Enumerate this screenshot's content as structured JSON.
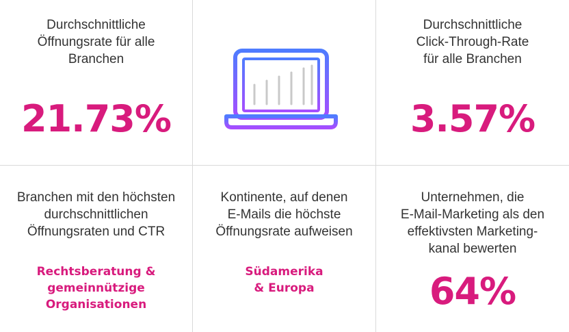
{
  "accent_color": "#d81b7d",
  "icon_gradient": [
    "#4f7cff",
    "#a64dff"
  ],
  "stats": {
    "open_rate": {
      "label": "Durchschnittliche\nÖffnungsrate für alle\nBranchen",
      "value": "21.73%"
    },
    "center_icon": "laptop-chart-icon",
    "ctr": {
      "label": "Durchschnittliche\nClick-Through-Rate\nfür alle Branchen",
      "value": "3.57%"
    },
    "industries": {
      "label": "Branchen mit den höchsten\ndurchschnittlichen\nÖffnungsraten und CTR",
      "value": "Rechtsberatung &\ngemeinnützige\nOrganisationen"
    },
    "continents": {
      "label": "Kontinente, auf denen\nE-Mails die höchste\nÖffnungsrate aufweisen",
      "value": "Südamerika\n& Europa"
    },
    "companies": {
      "label": "Unternehmen, die\nE-Mail-Marketing als den\neffektivsten Marketing-\nkanal bewerten",
      "value": "64%"
    }
  }
}
